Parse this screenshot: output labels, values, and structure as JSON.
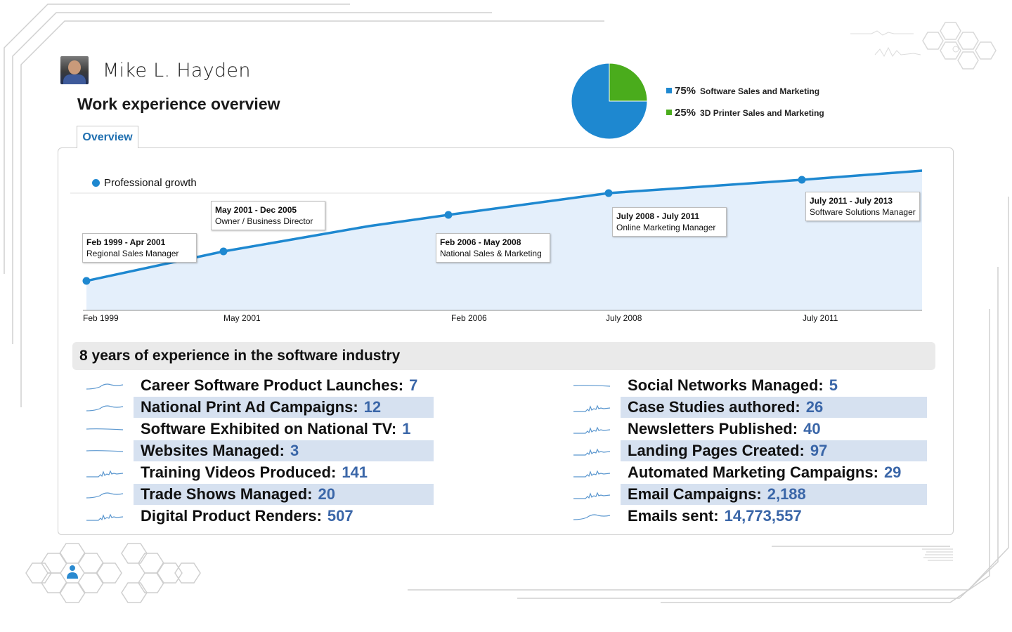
{
  "profile": {
    "name": "Mike L. Hayden"
  },
  "page": {
    "title": "Work experience overview",
    "tab_label": "Overview"
  },
  "pie": {
    "colors": [
      "#1e88d0",
      "#4aac1c"
    ],
    "items": [
      {
        "pct": "75%",
        "label": "Software Sales and Marketing",
        "value": 75
      },
      {
        "pct": "25%",
        "label": "3D Printer Sales and Marketing",
        "value": 25
      }
    ]
  },
  "growth_chart": {
    "legend": "Professional growth",
    "accent": "#1e88d0",
    "x_ticks": [
      "Feb 1999",
      "May 2001",
      "Feb 2006",
      "July 2008",
      "July 2011"
    ],
    "milestones": [
      {
        "dates": "Feb 1999 - Apr 2001",
        "role": "Regional Sales Manager"
      },
      {
        "dates": "May 2001 - Dec 2005",
        "role": "Owner / Business Director"
      },
      {
        "dates": "Feb 2006 - May 2008",
        "role": "National Sales & Marketing"
      },
      {
        "dates": "July 2008 - July 2011",
        "role": "Online Marketing Manager"
      },
      {
        "dates": "July 2011 - July 2013",
        "role": "Software Solutions Manager"
      }
    ]
  },
  "summary": {
    "heading": "8 years of experience in the software industry",
    "highlight_color": "#d6e1f0",
    "value_color": "#3a66a8",
    "left": [
      {
        "label": "Career Software Product Launches:",
        "value": "7",
        "spark": "smooth"
      },
      {
        "label": "National Print Ad Campaigns:",
        "value": "12",
        "spark": "smooth"
      },
      {
        "label": "Software Exhibited on National TV:",
        "value": "1",
        "spark": "flat"
      },
      {
        "label": "Websites Managed:",
        "value": "3",
        "spark": "flat"
      },
      {
        "label": "Training Videos Produced:",
        "value": "141",
        "spark": "spiky"
      },
      {
        "label": "Trade Shows Managed:",
        "value": "20",
        "spark": "smooth"
      },
      {
        "label": "Digital Product Renders:",
        "value": "507",
        "spark": "spiky"
      }
    ],
    "right": [
      {
        "label": "Social Networks Managed:",
        "value": "5",
        "spark": "flat"
      },
      {
        "label": "Case Studies authored:",
        "value": "26",
        "spark": "spiky"
      },
      {
        "label": "Newsletters Published:",
        "value": "40",
        "spark": "spiky"
      },
      {
        "label": "Landing Pages Created:",
        "value": "97",
        "spark": "spiky"
      },
      {
        "label": "Automated Marketing Campaigns:",
        "value": "29",
        "spark": "spiky"
      },
      {
        "label": "Email Campaigns:",
        "value": "2,188",
        "spark": "spiky"
      },
      {
        "label": "Emails sent:",
        "value": "14,773,557",
        "spark": "smooth"
      }
    ]
  }
}
